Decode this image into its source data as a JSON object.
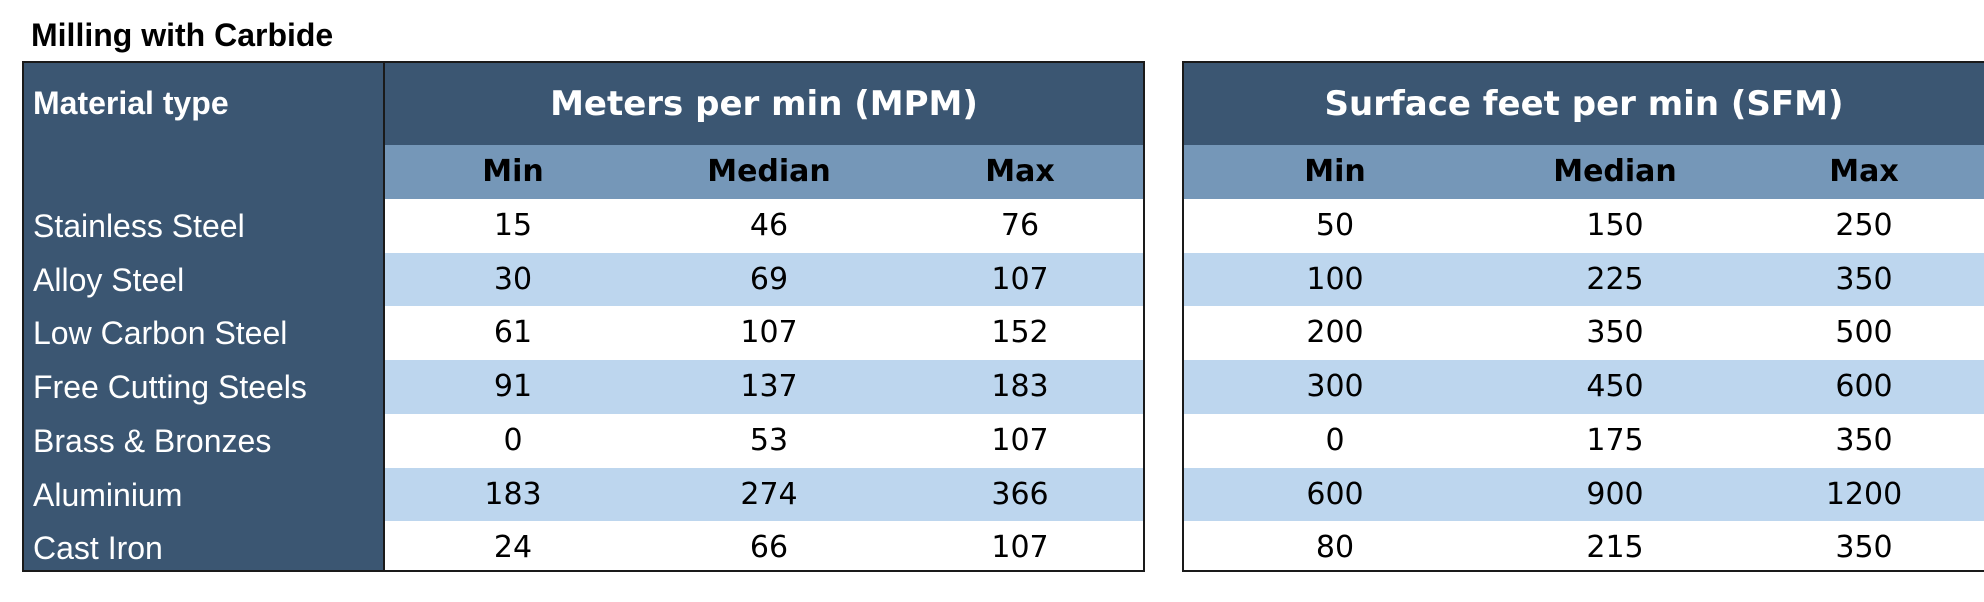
{
  "title": "Milling with Carbide",
  "material_header": "Material type",
  "mpm": {
    "header": "Meters per min (MPM)",
    "columns": [
      "Min",
      "Median",
      "Max"
    ]
  },
  "sfm": {
    "header": "Surface feet per min (SFM)",
    "columns": [
      "Min",
      "Median",
      "Max"
    ]
  },
  "rows": [
    {
      "material": "Stainless Steel",
      "mpm": [
        "15",
        "46",
        "76"
      ],
      "sfm": [
        "50",
        "150",
        "250"
      ]
    },
    {
      "material": "Alloy Steel",
      "mpm": [
        "30",
        "69",
        "107"
      ],
      "sfm": [
        "100",
        "225",
        "350"
      ]
    },
    {
      "material": "Low Carbon Steel",
      "mpm": [
        "61",
        "107",
        "152"
      ],
      "sfm": [
        "200",
        "350",
        "500"
      ]
    },
    {
      "material": "Free Cutting Steels",
      "mpm": [
        "91",
        "137",
        "183"
      ],
      "sfm": [
        "300",
        "450",
        "600"
      ]
    },
    {
      "material": "Brass & Bronzes",
      "mpm": [
        "0",
        "53",
        "107"
      ],
      "sfm": [
        "0",
        "175",
        "350"
      ]
    },
    {
      "material": "Aluminium",
      "mpm": [
        "183",
        "274",
        "366"
      ],
      "sfm": [
        "600",
        "900",
        "1200"
      ]
    },
    {
      "material": "Cast Iron",
      "mpm": [
        "24",
        "66",
        "107"
      ],
      "sfm": [
        "80",
        "215",
        "350"
      ]
    }
  ],
  "colors": {
    "header_dark": "#3b5672",
    "subheader": "#7597b8",
    "row_alt": "#bdd6ee",
    "row_plain": "#ffffff"
  }
}
